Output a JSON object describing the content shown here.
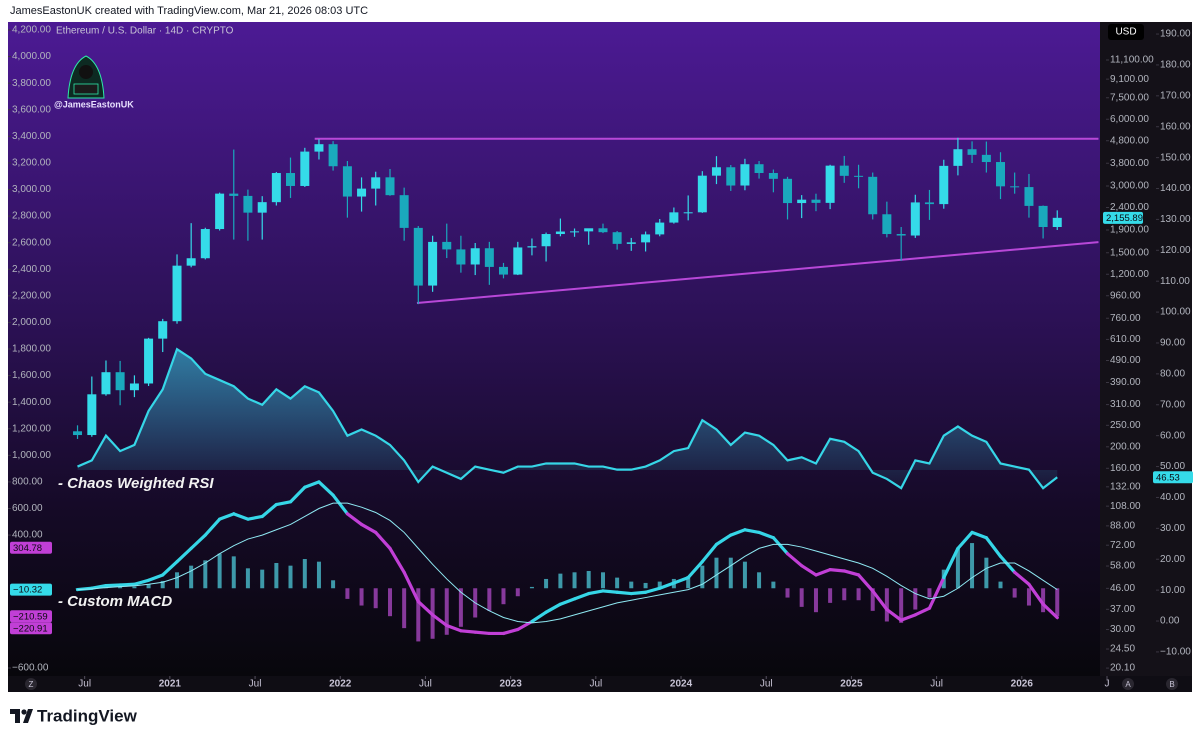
{
  "header": "JamesEastonUK created with TradingView.com, Mar 21, 2026 08:03 UTC",
  "watermark": "@JamesEastonUK",
  "axis_buttons": [
    "Z",
    "A",
    "B"
  ],
  "footer": {
    "brand": "TradingView"
  },
  "chart_data": {
    "type": "candlestick",
    "title": "Ethereum / U.S. Dollar · 14D · CRYPTO",
    "currency": "USD",
    "x": [
      2020.458,
      2020.542,
      2020.625,
      2020.708,
      2020.792,
      2020.875,
      2020.958,
      2021.042,
      2021.125,
      2021.208,
      2021.292,
      2021.375,
      2021.458,
      2021.542,
      2021.625,
      2021.708,
      2021.792,
      2021.875,
      2021.958,
      2022.042,
      2022.125,
      2022.208,
      2022.292,
      2022.375,
      2022.458,
      2022.542,
      2022.625,
      2022.708,
      2022.792,
      2022.875,
      2022.958,
      2023.042,
      2023.125,
      2023.208,
      2023.292,
      2023.375,
      2023.458,
      2023.542,
      2023.625,
      2023.708,
      2023.792,
      2023.875,
      2023.958,
      2024.042,
      2024.125,
      2024.208,
      2024.292,
      2024.375,
      2024.458,
      2024.542,
      2024.625,
      2024.708,
      2024.792,
      2024.875,
      2024.958,
      2025.042,
      2025.125,
      2025.208,
      2025.292,
      2025.375,
      2025.458,
      2025.542,
      2025.625,
      2025.708,
      2025.792,
      2025.875,
      2025.958,
      2026.042,
      2026.125,
      2026.208
    ],
    "open": [
      235,
      226,
      345,
      434,
      360,
      386,
      615,
      737,
      1312,
      1417,
      1919,
      2772,
      2707,
      2275,
      2537,
      3433,
      3001,
      4288,
      4631,
      3683,
      2689,
      2920,
      3283,
      2728,
      1942,
      1067,
      1679,
      1553,
      1328,
      1572,
      1295,
      1196,
      1585,
      1605,
      1822,
      1870,
      1873,
      1934,
      1857,
      1645,
      1671,
      1815,
      2052,
      2282,
      2283,
      3340,
      3645,
      3015,
      3762,
      3434,
      3232,
      2513,
      2603,
      2518,
      3706,
      3334,
      3300,
      2237,
      1822,
      1794,
      2530,
      2486,
      3698,
      4395,
      4146,
      3848,
      2990,
      2967,
      2440,
      1960
    ],
    "high": [
      250,
      415,
      490,
      488,
      420,
      620,
      755,
      1475,
      2040,
      1945,
      2800,
      4380,
      2890,
      2700,
      3470,
      4030,
      4460,
      4870,
      4780,
      3890,
      3280,
      3480,
      3580,
      2950,
      1980,
      1790,
      2030,
      1790,
      1660,
      1680,
      1350,
      1680,
      1740,
      1850,
      2140,
      1930,
      1930,
      2030,
      1880,
      1750,
      1870,
      2130,
      2400,
      2720,
      3500,
      4090,
      3730,
      3980,
      3890,
      3560,
      3300,
      2730,
      2770,
      3740,
      4100,
      3740,
      3450,
      2550,
      1960,
      2740,
      2880,
      3940,
      4950,
      4770,
      4760,
      4260,
      3450,
      3400,
      2450,
      2330
    ],
    "low": [
      217,
      222,
      340,
      308,
      335,
      376,
      535,
      718,
      1290,
      1400,
      1890,
      1720,
      1700,
      1720,
      2450,
      2650,
      2970,
      3950,
      3520,
      2160,
      2300,
      2450,
      2710,
      1700,
      880,
      1000,
      1420,
      1220,
      1190,
      1075,
      1150,
      1190,
      1460,
      1370,
      1780,
      1770,
      1630,
      1840,
      1550,
      1530,
      1520,
      1780,
      2030,
      2100,
      2270,
      3060,
      2850,
      2870,
      3240,
      2810,
      2120,
      2150,
      2310,
      2360,
      3100,
      2930,
      2120,
      1760,
      1380,
      1750,
      2110,
      2370,
      3350,
      3810,
      3450,
      2620,
      2770,
      2160,
      1740,
      1900
    ],
    "close": [
      226,
      345,
      434,
      360,
      386,
      615,
      737,
      1312,
      1417,
      1919,
      2772,
      2707,
      2275,
      2537,
      3433,
      3001,
      4288,
      4631,
      3683,
      2689,
      2920,
      3283,
      2728,
      1942,
      1067,
      1679,
      1553,
      1328,
      1572,
      1295,
      1196,
      1585,
      1605,
      1822,
      1870,
      1873,
      1934,
      1857,
      1645,
      1671,
      1815,
      2052,
      2282,
      2283,
      3340,
      3645,
      3015,
      3762,
      3434,
      3232,
      2513,
      2603,
      2518,
      3706,
      3334,
      3300,
      2237,
      1822,
      1794,
      2530,
      2486,
      3698,
      4395,
      4146,
      3848,
      2990,
      2967,
      2440,
      1960,
      2155.89
    ],
    "up_color": "#35dbe9",
    "down_color": "#1aa9bd",
    "xlim": [
      2020.05,
      2026.5
    ],
    "xticks": [
      {
        "value": 2020.5,
        "label": "Jul"
      },
      2021,
      {
        "value": 2021.5,
        "label": "Jul"
      },
      2022,
      {
        "value": 2022.5,
        "label": "Jul"
      },
      2023,
      {
        "value": 2023.5,
        "label": "Jul"
      },
      2024,
      {
        "value": 2024.5,
        "label": "Jul"
      },
      2025,
      {
        "value": 2025.5,
        "label": "Jul"
      },
      2026,
      {
        "value": 2026.5,
        "label": "J"
      }
    ],
    "log": true,
    "ylim": [
      19.3,
      16470
    ],
    "yticks": [
      {
        "value": 11100,
        "label": "11,100.00"
      },
      {
        "value": 9100,
        "label": "9,100.00"
      },
      {
        "value": 7500,
        "label": "7,500.00"
      },
      {
        "value": 6000,
        "label": "6,000.00"
      },
      {
        "value": 4800,
        "label": "4,800.00"
      },
      {
        "value": 3800,
        "label": "3,800.00"
      },
      {
        "value": 3000,
        "label": "3,000.00"
      },
      {
        "value": 2400,
        "label": "2,400.00"
      },
      {
        "value": 1900,
        "label": "1,900.00"
      },
      {
        "value": 1500,
        "label": "1,500.00"
      },
      {
        "value": 1200,
        "label": "1,200.00"
      },
      {
        "value": 960,
        "label": "960.00"
      },
      {
        "value": 760,
        "label": "760.00"
      },
      {
        "value": 610,
        "label": "610.00"
      },
      {
        "value": 490,
        "label": "490.00"
      },
      {
        "value": 390,
        "label": "390.00"
      },
      {
        "value": 310,
        "label": "310.00"
      },
      {
        "value": 250,
        "label": "250.00"
      },
      {
        "value": 200,
        "label": "200.00"
      },
      {
        "value": 160,
        "label": "160.00"
      },
      {
        "value": 132,
        "label": "132.00"
      },
      {
        "value": 108,
        "label": "108.00"
      },
      {
        "value": 88,
        "label": "88.00"
      },
      {
        "value": 72,
        "label": "72.00"
      },
      {
        "value": 58,
        "label": "58.00"
      },
      {
        "value": 46,
        "label": "46.00"
      },
      {
        "value": 37,
        "label": "37.00"
      },
      {
        "value": 30,
        "label": "30.00"
      },
      {
        "value": 24.5,
        "label": "24.50"
      },
      {
        "value": 20.1,
        "label": "20.10"
      }
    ],
    "y2lim": [
      -16.5,
      193.9
    ],
    "y2ticks": [
      {
        "value": 190,
        "label": "190.00"
      },
      {
        "value": 180,
        "label": "180.00"
      },
      {
        "value": 170,
        "label": "170.00"
      },
      {
        "value": 160,
        "label": "160.00"
      },
      {
        "value": 150,
        "label": "150.00"
      },
      {
        "value": 140,
        "label": "140.00"
      },
      {
        "value": 130,
        "label": "130.00"
      },
      {
        "value": 120,
        "label": "120.00"
      },
      {
        "value": 110,
        "label": "110.00"
      },
      {
        "value": 100,
        "label": "100.00"
      },
      {
        "value": 90,
        "label": "90.00"
      },
      {
        "value": 80,
        "label": "80.00"
      },
      {
        "value": 70,
        "label": "70.00"
      },
      {
        "value": 60,
        "label": "60.00"
      },
      {
        "value": 50,
        "label": "50.00"
      },
      {
        "value": 40,
        "label": "40.00"
      },
      {
        "value": 30,
        "label": "30.00"
      },
      {
        "value": 20,
        "label": "20.00"
      },
      {
        "value": 10,
        "label": "10.00"
      },
      {
        "value": 0,
        "label": "0.00"
      },
      {
        "value": -10,
        "label": "−10.00"
      }
    ],
    "y3lim": [
      -630,
      4260
    ],
    "y3ticks": [
      {
        "value": 4200,
        "label": "4,200.00"
      },
      {
        "value": 4000,
        "label": "4,000.00"
      },
      {
        "value": 3800,
        "label": "3,800.00"
      },
      {
        "value": 3600,
        "label": "3,600.00"
      },
      {
        "value": 3400,
        "label": "3,400.00"
      },
      {
        "value": 3200,
        "label": "3,200.00"
      },
      {
        "value": 3000,
        "label": "3,000.00"
      },
      {
        "value": 2800,
        "label": "2,800.00"
      },
      {
        "value": 2600,
        "label": "2,600.00"
      },
      {
        "value": 2400,
        "label": "2,400.00"
      },
      {
        "value": 2200,
        "label": "2,200.00"
      },
      {
        "value": 2000,
        "label": "2,000.00"
      },
      {
        "value": 1800,
        "label": "1,800.00"
      },
      {
        "value": 1600,
        "label": "1,600.00"
      },
      {
        "value": 1400,
        "label": "1,400.00"
      },
      {
        "value": 1200,
        "label": "1,200.00"
      },
      {
        "value": 1000,
        "label": "1,000.00"
      },
      {
        "value": 800,
        "label": "800.00"
      },
      {
        "value": 600,
        "label": "600.00"
      },
      {
        "value": 400,
        "label": "400.00"
      },
      {
        "value": -600,
        "label": "−600.00"
      }
    ],
    "last_labels": [
      {
        "value": 2155.89,
        "label": "2,155.89",
        "axis": "y",
        "color": "#35dbe9"
      },
      {
        "value": 46.53,
        "label": "46.53",
        "axis": "y2",
        "color": "#35dbe9"
      },
      {
        "value": 304.78,
        "label": "304.78",
        "axis": "y3",
        "color": "#c13fd6"
      },
      {
        "value": -10.32,
        "label": "−10.32",
        "axis": "y3",
        "color": "#35dbe9"
      },
      {
        "value": -210.59,
        "label": "−210.59",
        "axis": "y3",
        "color": "#c13fd6"
      },
      {
        "value": -220.91,
        "label": "−220.91",
        "axis": "y3",
        "color": "#c13fd6"
      }
    ],
    "trendlines": [
      {
        "color": "#b848d8",
        "points": [
          [
            2021.85,
            4900
          ],
          [
            2026.45,
            4900
          ]
        ]
      },
      {
        "color": "#b848d8",
        "points": [
          [
            2022.45,
            890
          ],
          [
            2026.45,
            1675
          ]
        ]
      }
    ],
    "series": [
      {
        "name": "- Chaos Weighted RSI",
        "type": "area",
        "axis": "y2",
        "color": "#36d6e7",
        "values": [
          50,
          52,
          60,
          55,
          57,
          68,
          75,
          88,
          85,
          80,
          78,
          76,
          72,
          70,
          75,
          72,
          76,
          74,
          68,
          60,
          62,
          60,
          57,
          52,
          45,
          50,
          48,
          46,
          50,
          49,
          48,
          50,
          50,
          51,
          51,
          51,
          50,
          50,
          49,
          49,
          50,
          52,
          55,
          56,
          65,
          62,
          57,
          61,
          60,
          57,
          52,
          53,
          51,
          59,
          58,
          55,
          48,
          46,
          43,
          52,
          51,
          60,
          63,
          60,
          58,
          51,
          50,
          49,
          43,
          46.53
        ]
      },
      {
        "name": "- Custom MACD",
        "type": "line",
        "axis": "y3",
        "color": "#36d6e7",
        "color_below": "#c13fd6",
        "values": [
          -10,
          0,
          20,
          25,
          30,
          60,
          100,
          200,
          300,
          400,
          520,
          560,
          520,
          540,
          630,
          650,
          760,
          800,
          700,
          560,
          480,
          420,
          300,
          120,
          -100,
          -200,
          -280,
          -320,
          -330,
          -340,
          -340,
          -310,
          -250,
          -180,
          -120,
          -80,
          -40,
          -20,
          -30,
          -40,
          -30,
          0,
          40,
          80,
          200,
          330,
          400,
          440,
          420,
          380,
          260,
          170,
          100,
          140,
          130,
          100,
          -20,
          -160,
          -240,
          -200,
          -150,
          80,
          300,
          420,
          380,
          240,
          120,
          30,
          -120,
          -220.91
        ]
      },
      {
        "type": "line",
        "axis": "y3",
        "color": "#8fe9f3",
        "values": [
          -10,
          -5,
          5,
          12,
          18,
          30,
          45,
          80,
          130,
          190,
          260,
          320,
          370,
          400,
          440,
          480,
          540,
          600,
          640,
          640,
          610,
          570,
          510,
          420,
          300,
          180,
          70,
          -30,
          -110,
          -170,
          -220,
          -250,
          -260,
          -250,
          -230,
          -200,
          -170,
          -140,
          -110,
          -90,
          -70,
          -50,
          -30,
          -10,
          30,
          100,
          170,
          240,
          300,
          330,
          330,
          310,
          280,
          250,
          220,
          190,
          150,
          90,
          20,
          -40,
          -80,
          -60,
          0,
          80,
          150,
          190,
          190,
          130,
          60,
          -10.32
        ]
      },
      {
        "type": "bar",
        "axis": "y3",
        "color": "#4ec9d9",
        "color_negative": "#b04ac8",
        "values": [
          0,
          5,
          15,
          13,
          12,
          30,
          55,
          120,
          170,
          210,
          260,
          240,
          150,
          140,
          190,
          170,
          220,
          200,
          60,
          -80,
          -130,
          -150,
          -210,
          -300,
          -400,
          -380,
          -350,
          -290,
          -220,
          -170,
          -120,
          -60,
          10,
          70,
          110,
          120,
          130,
          120,
          80,
          50,
          40,
          50,
          70,
          90,
          170,
          230,
          230,
          200,
          120,
          50,
          -70,
          -140,
          -180,
          -110,
          -90,
          -90,
          -170,
          -250,
          -260,
          -160,
          -70,
          140,
          300,
          340,
          230,
          50,
          -70,
          -130,
          -180,
          -210.59
        ]
      }
    ]
  }
}
